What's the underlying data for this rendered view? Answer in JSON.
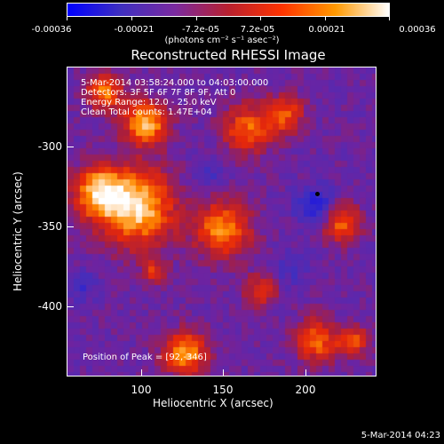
{
  "colorbar": {
    "ticks": [
      "-0.00036",
      "-0.00021",
      "-7.2e-05",
      "7.2e-05",
      "0.00021",
      "0.00036"
    ],
    "units": "(photons cm⁻² s⁻¹ asec⁻²)",
    "colors": [
      "#0000ff",
      "#3f2fbf",
      "#7a2aa0",
      "#b8202f",
      "#ff3300",
      "#ff9900",
      "#ffffff"
    ]
  },
  "title": "Reconstructed RHESSI Image",
  "overlay": {
    "time_range": "5-Mar-2014 03:58:24.000 to 04:03:00.000",
    "detectors": "Detectors: 3F 5F 6F 7F 8F 9F, Att 0",
    "energy_range": "Energy Range: 12.0 - 25.0 keV",
    "clean_counts": "Clean  Total counts: 1.47E+04",
    "peak_position": "Position of Peak = [92,-346]"
  },
  "axes": {
    "xlabel": "Heliocentric X (arcsec)",
    "ylabel": "Heliocentric Y (arcsec)",
    "xticks": [
      "100",
      "150",
      "200"
    ],
    "yticks": [
      "-300",
      "-350",
      "-400"
    ]
  },
  "footer_date": "5-Mar-2014 04:23"
}
